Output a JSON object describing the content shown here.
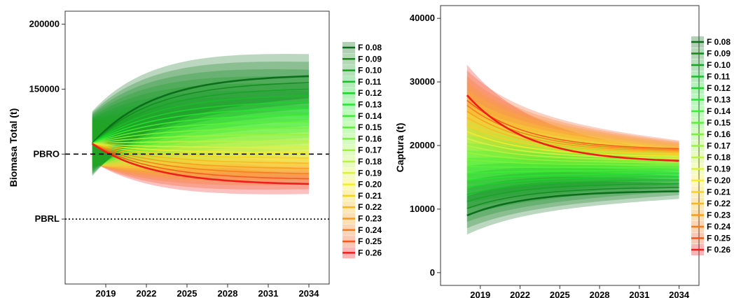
{
  "colors": {
    "F 0.08": "#0b6e1a",
    "F 0.09": "#138a1f",
    "F 0.10": "#16a324",
    "F 0.11": "#19bd28",
    "F 0.12": "#1cd42c",
    "F 0.13": "#24e52f",
    "F 0.14": "#3af033",
    "F 0.15": "#5af236",
    "F 0.16": "#7bf23a",
    "F 0.17": "#9cf23d",
    "F 0.18": "#bcf240",
    "F 0.19": "#dcf243",
    "F 0.20": "#f5ec2a",
    "F 0.21": "#f7d321",
    "F 0.22": "#f8b81d",
    "F 0.23": "#f89a1c",
    "F 0.24": "#f77a1b",
    "F 0.25": "#f5551b",
    "F 0.26": "#f01d1d"
  },
  "chart_data": [
    {
      "type": "line",
      "title": "",
      "xlabel": "",
      "ylabel": "Biomasa Total (t)",
      "x_ticks": [
        "2019",
        "2022",
        "2025",
        "2028",
        "2031",
        "2034"
      ],
      "y_ticks": [
        "150000",
        "200000"
      ],
      "xlim": [
        2016,
        2035.5
      ],
      "ylim": [
        0,
        210000
      ],
      "x_start": 2018,
      "x_end": 2034,
      "reference_lines": [
        {
          "label": "PBRO",
          "value": 100000,
          "style": "dashed"
        },
        {
          "label": "PBRL",
          "value": 50000,
          "style": "dotted"
        }
      ],
      "legend_position": "right",
      "band_description": "shaded bands show uncertainty around each median projection",
      "series": [
        {
          "name": "F 0.08",
          "start": 108000,
          "end": 160000,
          "band_start": 25000,
          "band_end": 17000
        },
        {
          "name": "F 0.09",
          "start": 108000,
          "end": 155000,
          "band_start": 24000,
          "band_end": 16000
        },
        {
          "name": "F 0.10",
          "start": 108000,
          "end": 150000,
          "band_start": 23000,
          "band_end": 15000
        },
        {
          "name": "F 0.11",
          "start": 108000,
          "end": 145000,
          "band_start": 22000,
          "band_end": 14500
        },
        {
          "name": "F 0.12",
          "start": 108000,
          "end": 140000,
          "band_start": 21000,
          "band_end": 14000
        },
        {
          "name": "F 0.13",
          "start": 108000,
          "end": 135000,
          "band_start": 20000,
          "band_end": 13500
        },
        {
          "name": "F 0.14",
          "start": 108000,
          "end": 130000,
          "band_start": 19500,
          "band_end": 13000
        },
        {
          "name": "F 0.15",
          "start": 108000,
          "end": 125000,
          "band_start": 19000,
          "band_end": 12500
        },
        {
          "name": "F 0.16",
          "start": 108000,
          "end": 120000,
          "band_start": 18500,
          "band_end": 12000
        },
        {
          "name": "F 0.17",
          "start": 108000,
          "end": 115000,
          "band_start": 18000,
          "band_end": 11500
        },
        {
          "name": "F 0.18",
          "start": 108000,
          "end": 110000,
          "band_start": 17500,
          "band_end": 11000
        },
        {
          "name": "F 0.19",
          "start": 108000,
          "end": 105000,
          "band_start": 17000,
          "band_end": 10500
        },
        {
          "name": "F 0.20",
          "start": 108000,
          "end": 101000,
          "band_start": 16500,
          "band_end": 10000
        },
        {
          "name": "F 0.21",
          "start": 108000,
          "end": 97000,
          "band_start": 16000,
          "band_end": 9500
        },
        {
          "name": "F 0.22",
          "start": 108000,
          "end": 93000,
          "band_start": 15500,
          "band_end": 9000
        },
        {
          "name": "F 0.23",
          "start": 108000,
          "end": 89000,
          "band_start": 15000,
          "band_end": 8700
        },
        {
          "name": "F 0.24",
          "start": 108000,
          "end": 85000,
          "band_start": 14500,
          "band_end": 8400
        },
        {
          "name": "F 0.25",
          "start": 108000,
          "end": 81000,
          "band_start": 14000,
          "band_end": 8000
        },
        {
          "name": "F 0.26",
          "start": 108000,
          "end": 77000,
          "band_start": 13500,
          "band_end": 7700
        }
      ],
      "highlighted_series": [
        "F 0.08",
        "F 0.26"
      ]
    },
    {
      "type": "line",
      "title": "",
      "xlabel": "",
      "ylabel": "Captura (t)",
      "x_ticks": [
        "2019",
        "2022",
        "2025",
        "2028",
        "2031",
        "2034"
      ],
      "y_ticks": [
        "0",
        "10000",
        "20000",
        "30000",
        "40000"
      ],
      "xlim": [
        2016,
        2035.5
      ],
      "ylim": [
        -2000,
        42000
      ],
      "x_start": 2018,
      "x_end": 2034,
      "legend_position": "right",
      "series": [
        {
          "name": "F 0.08",
          "start": 9000,
          "end": 12800,
          "band_start": 3000,
          "band_end": 1200
        },
        {
          "name": "F 0.09",
          "start": 10100,
          "end": 13400,
          "band_start": 3100,
          "band_end": 1200
        },
        {
          "name": "F 0.10",
          "start": 11200,
          "end": 14000,
          "band_start": 3200,
          "band_end": 1200
        },
        {
          "name": "F 0.11",
          "start": 12300,
          "end": 14600,
          "band_start": 3300,
          "band_end": 1200
        },
        {
          "name": "F 0.12",
          "start": 13400,
          "end": 15100,
          "band_start": 3400,
          "band_end": 1200
        },
        {
          "name": "F 0.13",
          "start": 14500,
          "end": 15600,
          "band_start": 3500,
          "band_end": 1200
        },
        {
          "name": "F 0.14",
          "start": 15600,
          "end": 16100,
          "band_start": 3600,
          "band_end": 1200
        },
        {
          "name": "F 0.15",
          "start": 16700,
          "end": 16500,
          "band_start": 3700,
          "band_end": 1200
        },
        {
          "name": "F 0.16",
          "start": 17800,
          "end": 16900,
          "band_start": 3800,
          "band_end": 1200
        },
        {
          "name": "F 0.17",
          "start": 18900,
          "end": 17300,
          "band_start": 3900,
          "band_end": 1200
        },
        {
          "name": "F 0.18",
          "start": 20000,
          "end": 17700,
          "band_start": 4000,
          "band_end": 1200
        },
        {
          "name": "F 0.19",
          "start": 21100,
          "end": 18000,
          "band_start": 4100,
          "band_end": 1200
        },
        {
          "name": "F 0.20",
          "start": 22200,
          "end": 18300,
          "band_start": 4200,
          "band_end": 1200
        },
        {
          "name": "F 0.21",
          "start": 23300,
          "end": 18600,
          "band_start": 4300,
          "band_end": 1200
        },
        {
          "name": "F 0.22",
          "start": 24400,
          "end": 18900,
          "band_start": 4400,
          "band_end": 1300
        },
        {
          "name": "F 0.23",
          "start": 25400,
          "end": 19100,
          "band_start": 4500,
          "band_end": 1300
        },
        {
          "name": "F 0.24",
          "start": 26300,
          "end": 19300,
          "band_start": 4600,
          "band_end": 1300
        },
        {
          "name": "F 0.25",
          "start": 27100,
          "end": 19500,
          "band_start": 4700,
          "band_end": 1300
        },
        {
          "name": "F 0.26",
          "start": 27900,
          "end": 17600,
          "band_start": 4800,
          "band_end": 1300
        }
      ],
      "highlighted_series": [
        "F 0.08",
        "F 0.26"
      ]
    }
  ]
}
